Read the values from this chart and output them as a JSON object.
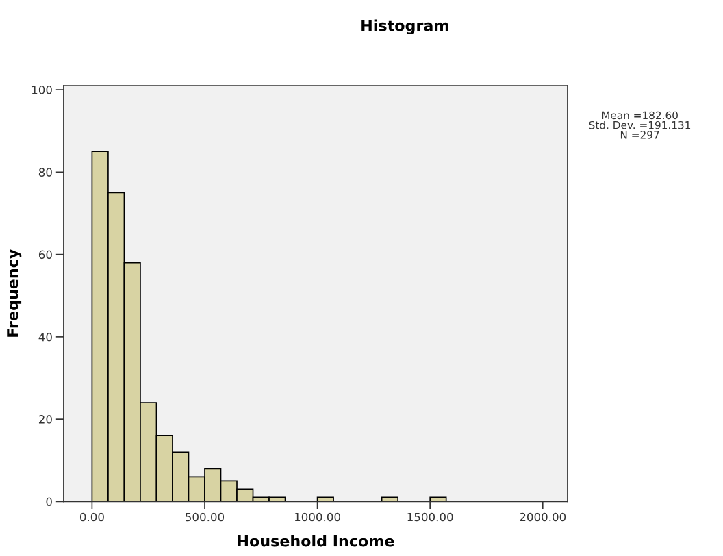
{
  "chart_data": {
    "type": "histogram",
    "title": "Histogram",
    "xlabel": "Household Income",
    "ylabel": "Frequency",
    "bins": [
      0,
      71.43,
      142.86,
      214.29,
      285.71,
      357.14,
      428.57,
      500,
      571.43,
      642.86,
      714.29,
      785.71,
      857.14,
      928.57,
      1000,
      1071.43,
      1142.86,
      1214.29,
      1285.71,
      1357.14,
      1428.57,
      1500,
      1571.43
    ],
    "values": [
      85,
      75,
      58,
      24,
      16,
      12,
      6,
      8,
      5,
      3,
      1,
      1,
      0,
      0,
      1,
      0,
      0,
      0,
      1,
      0,
      0,
      1
    ],
    "color": "#d8d3a3",
    "xlim": [
      -126,
      2110
    ],
    "ylim": [
      0,
      101
    ],
    "xticks": [
      {
        "value": 0,
        "label": "0.00"
      },
      {
        "value": 500,
        "label": "500.00"
      },
      {
        "value": 1000,
        "label": "1000.00"
      },
      {
        "value": 1500,
        "label": "1500.00"
      },
      {
        "value": 2000,
        "label": "2000.00"
      }
    ],
    "yticks": [
      0,
      20,
      40,
      60,
      80,
      100
    ],
    "annotations": [
      "Mean =182.60\nStd. Dev. =191.131\nN =297"
    ],
    "grid": false,
    "legend": false
  }
}
